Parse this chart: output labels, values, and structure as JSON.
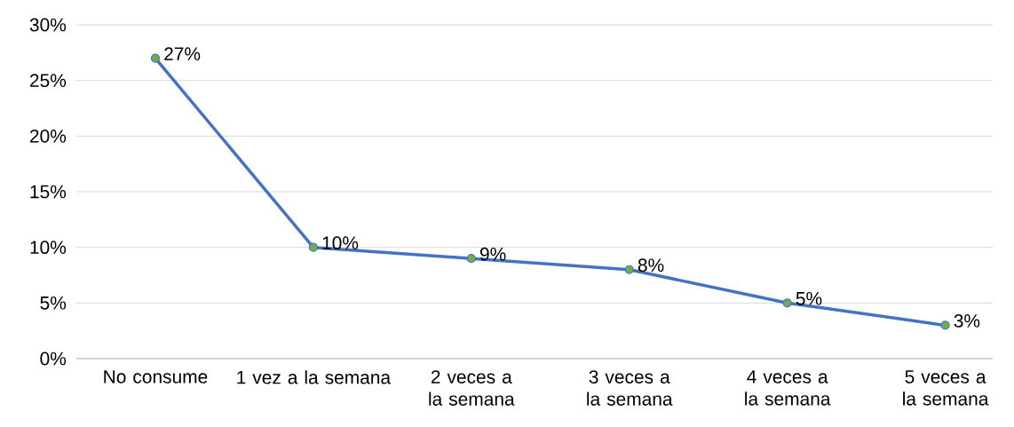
{
  "chart_data": {
    "type": "line",
    "categories": [
      "No consume",
      "1 vez a la semana",
      "2 veces a la semana",
      "3 veces a la semana",
      "4 veces a la semana",
      "5 veces a la semana"
    ],
    "series": [
      {
        "color": "#4472c4",
        "values": [
          27,
          10,
          9,
          8,
          5,
          3
        ],
        "value_labels": [
          "27%",
          "10%",
          "9%",
          "8%",
          "5%",
          "3%"
        ]
      }
    ],
    "ylim": [
      0,
      30
    ],
    "yticks": [
      {
        "value": 0,
        "label": "0%"
      },
      {
        "value": 5,
        "label": "5%"
      },
      {
        "value": 10,
        "label": "10%"
      },
      {
        "value": 15,
        "label": "15%"
      },
      {
        "value": 20,
        "label": "20%"
      },
      {
        "value": 25,
        "label": "25%"
      },
      {
        "value": 30,
        "label": "30%"
      }
    ],
    "grid": "y",
    "marker": "circle",
    "line_style": "solid"
  }
}
